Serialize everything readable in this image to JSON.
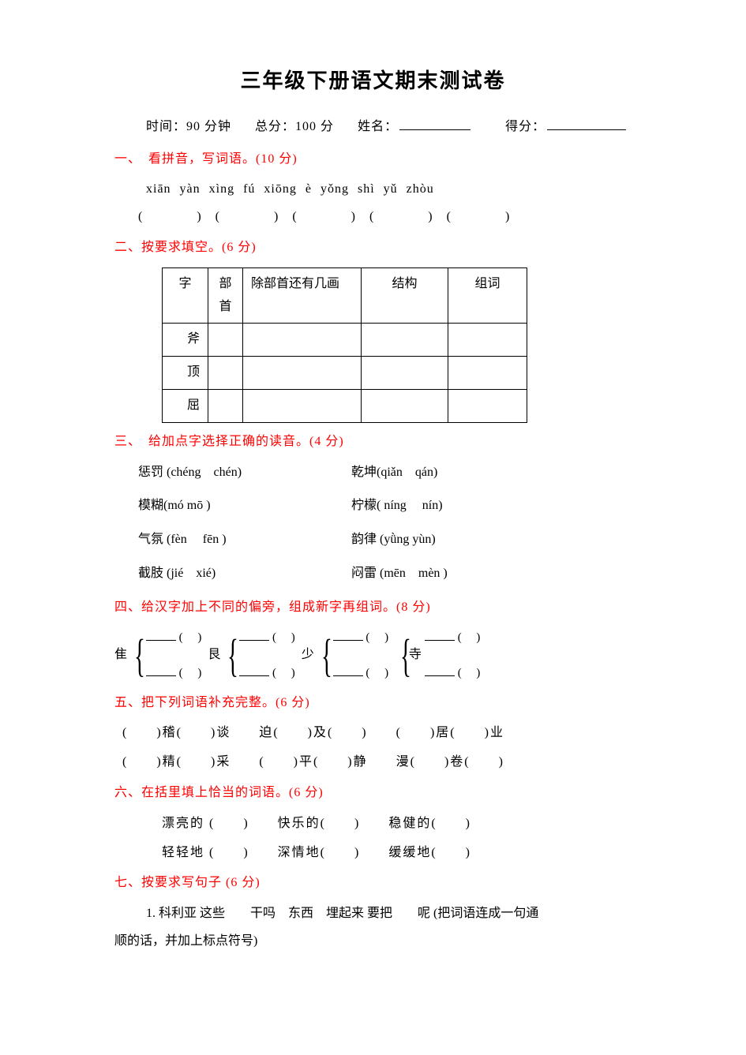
{
  "title": "三年级下册语文期末测试卷",
  "meta": {
    "time_label": "时间：",
    "time_value": "90 分钟",
    "total_label": "总分：",
    "total_value": "100 分",
    "name_label": "姓名：",
    "score_label": "得分："
  },
  "s1": {
    "head": "一、　看拼音，写词语。(10 分)",
    "pinyin": "xiān  yàn      xìng  fú      xiōng  è      yǒng  shì      yǔ  zhòu",
    "parens": "(　　　　)　(　　　　)　(　　　　)　(　　　　)　(　　　　)"
  },
  "s2": {
    "head": "二、按要求填空。(6 分)",
    "table": {
      "headers": {
        "zi": "字",
        "bushou": "部首",
        "strokes": "除部首还有几画",
        "jiegou": "结构",
        "zuci": "组词"
      },
      "rows": [
        "斧",
        "顶",
        "屈"
      ]
    }
  },
  "s3": {
    "head": "三、　给加点字选择正确的读音。(4 分)",
    "rows": [
      {
        "left": "惩罚 (chéng　chén)",
        "right": "乾坤(qiǎn　qán)"
      },
      {
        "left": "模糊(mó mō )",
        "right": "柠檬( níng　 nín)"
      },
      {
        "left": "气氛 (fèn　 fēn )",
        "right": "韵律 (yǜng yùn)"
      },
      {
        "left": "截肢 (jié　xié)",
        "right": "闷雷 (mēn　mèn )"
      }
    ]
  },
  "s4": {
    "head": "四、给汉字加上不同的偏旁，组成新字再组词。(8 分)",
    "bases": [
      "隹",
      "艮",
      "少",
      "寺"
    ]
  },
  "s5": {
    "head": "五、把下列词语补充完整。(6 分)",
    "row1": "(　　)稽(　　)谈　　迫(　　)及(　　)　　(　　)居(　　)业",
    "row2": "(　　)精(　　)采　　(　　)平(　　)静　　漫(　　)卷(　　)"
  },
  "s6": {
    "head": "六、在括里填上恰当的词语。(6 分)",
    "row1": "漂亮的 (　　)　　快乐的(　　)　　稳健的(　　)",
    "row2": "轻轻地 (　　)　　深情地(　　)　　缓缓地(　　)"
  },
  "s7": {
    "head": "七、按要求写句子 (6 分)",
    "item1_a": "1. 科利亚  这些　　干吗　东西　埋起来  要把　　呢 (把词语连成一句通",
    "item1_b": "顺的话，并加上标点符号)"
  },
  "colors": {
    "heading": "#ff0000",
    "text": "#000000",
    "background": "#ffffff",
    "border": "#000000"
  }
}
